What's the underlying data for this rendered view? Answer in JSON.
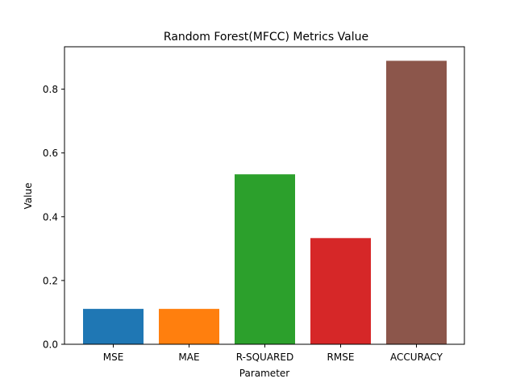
{
  "chart_data": {
    "type": "bar",
    "title": "Random Forest(MFCC) Metrics Value",
    "xlabel": "Parameter",
    "ylabel": "Value",
    "categories": [
      "MSE",
      "MAE",
      "R-SQUARED",
      "RMSE",
      "ACCURACY"
    ],
    "values": [
      0.111,
      0.111,
      0.533,
      0.333,
      0.889
    ],
    "colors": [
      "#1f77b4",
      "#ff7f0e",
      "#2ca02c",
      "#d62728",
      "#8c564b"
    ],
    "ylim": [
      0,
      0.933
    ],
    "yticks": [
      0.0,
      0.2,
      0.4,
      0.6,
      0.8
    ],
    "ytick_labels": [
      "0.0",
      "0.2",
      "0.4",
      "0.6",
      "0.8"
    ],
    "grid": false,
    "legend": "none"
  }
}
